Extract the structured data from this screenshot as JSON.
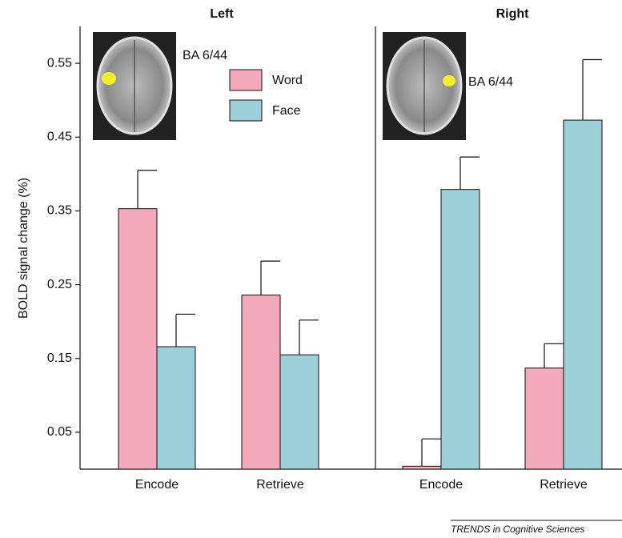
{
  "chart_data": {
    "type": "bar",
    "ylabel": "BOLD signal change (%)",
    "ylim": [
      0,
      0.6
    ],
    "yticks": [
      0.05,
      0.15,
      0.25,
      0.35,
      0.45,
      0.55
    ],
    "categories": [
      "Encode",
      "Retrieve",
      "Encode",
      "Retrieve"
    ],
    "panels": [
      {
        "title": "Left",
        "annotation": "BA 6/44"
      },
      {
        "title": "Right",
        "annotation": "BA 6/44"
      }
    ],
    "series": [
      {
        "name": "Word",
        "color": "#f4a8bb",
        "values": [
          0.353,
          0.236,
          0.004,
          0.137
        ],
        "errors": [
          0.052,
          0.046,
          0.037,
          0.033
        ]
      },
      {
        "name": "Face",
        "color": "#9dcfd9",
        "values": [
          0.166,
          0.155,
          0.379,
          0.473
        ],
        "errors": [
          0.044,
          0.047,
          0.044,
          0.082
        ]
      }
    ],
    "source": "TRENDS in Cognitive Sciences"
  }
}
